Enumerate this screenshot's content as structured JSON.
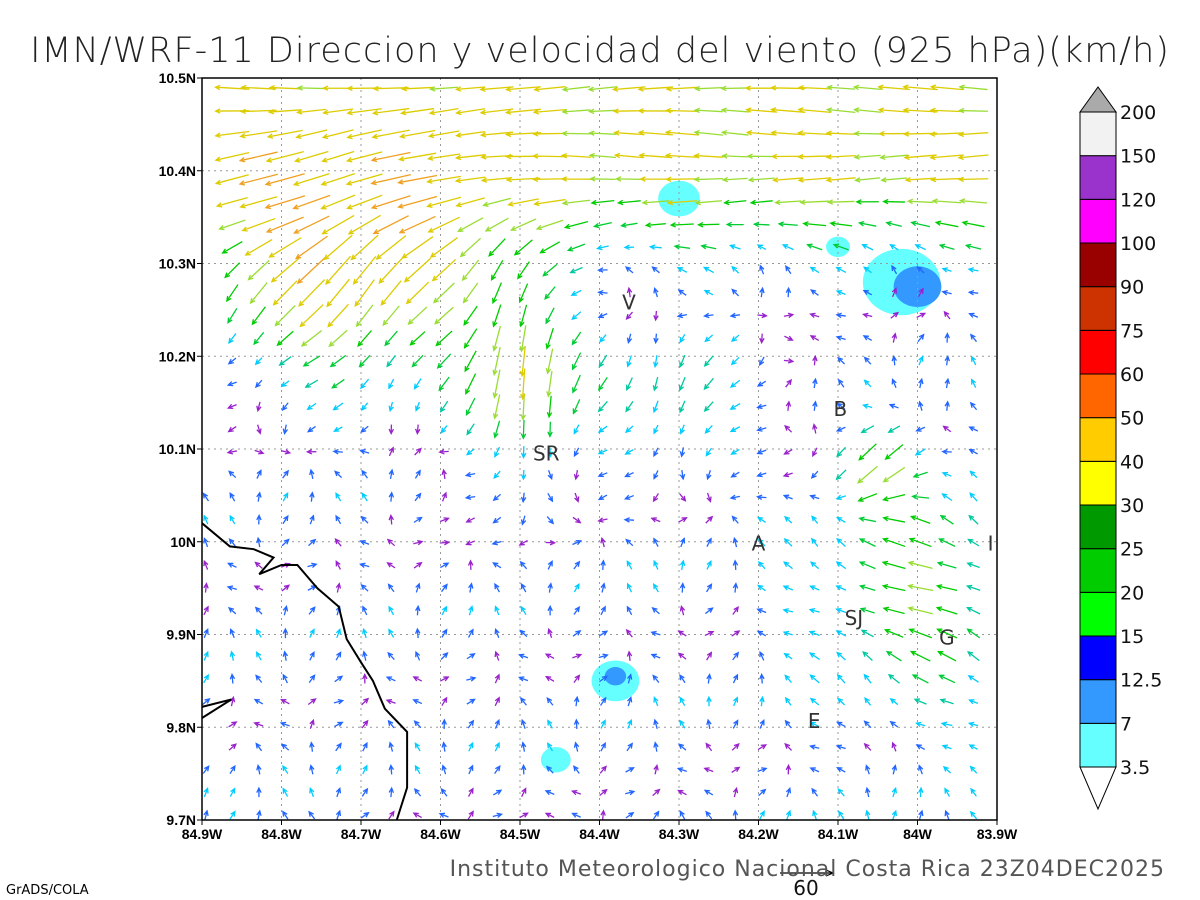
{
  "title": "IMN/WRF-11 Direccion y velocidad del viento (925 hPa)(km/h)",
  "footer": "Instituto Meteorologico Nacional Costa Rica  23Z04DEC2025",
  "credit": "GrADS/COLA",
  "reference_vector": {
    "label": "60",
    "speed": 60
  },
  "map": {
    "lon_range": [
      -84.9,
      -83.9
    ],
    "lat_range": [
      9.7,
      10.5
    ],
    "x_ticks": [
      "84.9W",
      "84.8W",
      "84.7W",
      "84.6W",
      "84.5W",
      "84.4W",
      "84.3W",
      "84.2W",
      "84.1W",
      "84W",
      "83.9W"
    ],
    "y_ticks": [
      "9.7N",
      "9.8N",
      "9.9N",
      "10N",
      "10.1N",
      "10.2N",
      "10.3N",
      "10.4N",
      "10.5N"
    ],
    "towns": [
      {
        "label": "V",
        "lon": -84.363,
        "lat": 10.258
      },
      {
        "label": "SR",
        "lon": -84.467,
        "lat": 10.095
      },
      {
        "label": "B",
        "lon": -84.097,
        "lat": 10.143
      },
      {
        "label": "A",
        "lon": -84.2,
        "lat": 9.998
      },
      {
        "label": "SJ",
        "lon": -84.08,
        "lat": 9.918
      },
      {
        "label": "G",
        "lon": -83.963,
        "lat": 9.897
      },
      {
        "label": "E",
        "lon": -84.13,
        "lat": 9.807
      },
      {
        "label": "I",
        "lon": -83.908,
        "lat": 9.998
      }
    ],
    "coastline": [
      [
        -84.9,
        10.02
      ],
      [
        -84.865,
        9.995
      ],
      [
        -84.835,
        9.992
      ],
      [
        -84.81,
        9.983
      ],
      [
        -84.828,
        9.965
      ],
      [
        -84.8,
        9.975
      ],
      [
        -84.78,
        9.975
      ],
      [
        -84.755,
        9.95
      ],
      [
        -84.728,
        9.93
      ],
      [
        -84.718,
        9.895
      ],
      [
        -84.7,
        9.87
      ],
      [
        -84.685,
        9.85
      ],
      [
        -84.67,
        9.82
      ],
      [
        -84.642,
        9.795
      ],
      [
        -84.642,
        9.735
      ],
      [
        -84.655,
        9.7
      ]
    ],
    "coastline2": [
      [
        -84.9,
        9.81
      ],
      [
        -84.863,
        9.83
      ],
      [
        -84.9,
        9.822
      ]
    ]
  },
  "colorbar": {
    "levels": [
      "3.5",
      "7",
      "12.5",
      "15",
      "20",
      "25",
      "30",
      "40",
      "50",
      "60",
      "75",
      "90",
      "100",
      "120",
      "150",
      "200"
    ],
    "colors": [
      "#66ffff",
      "#3399ff",
      "#0000ff",
      "#00ff00",
      "#00cc00",
      "#009900",
      "#ffff00",
      "#ffcc00",
      "#ff6600",
      "#ff0000",
      "#cc3300",
      "#990000",
      "#ff00ff",
      "#9933cc",
      "#f2f2f2"
    ],
    "over_color": "#aaaaaa",
    "under_color": "#ffffff"
  },
  "shading": [
    {
      "lon": -84.38,
      "lat": 9.85,
      "r": 0.04,
      "level": "3.5"
    },
    {
      "lon": -84.38,
      "lat": 9.855,
      "r": 0.018,
      "level": "7"
    },
    {
      "lon": -84.455,
      "lat": 9.765,
      "r": 0.025,
      "level": "3.5"
    },
    {
      "lon": -84.3,
      "lat": 10.37,
      "r": 0.035,
      "level": "3.5"
    },
    {
      "lon": -84.1,
      "lat": 10.318,
      "r": 0.02,
      "level": "3.5"
    },
    {
      "lon": -84.02,
      "lat": 10.28,
      "r": 0.065,
      "level": "3.5"
    },
    {
      "lon": -84.0,
      "lat": 10.275,
      "r": 0.04,
      "level": "7"
    }
  ]
}
